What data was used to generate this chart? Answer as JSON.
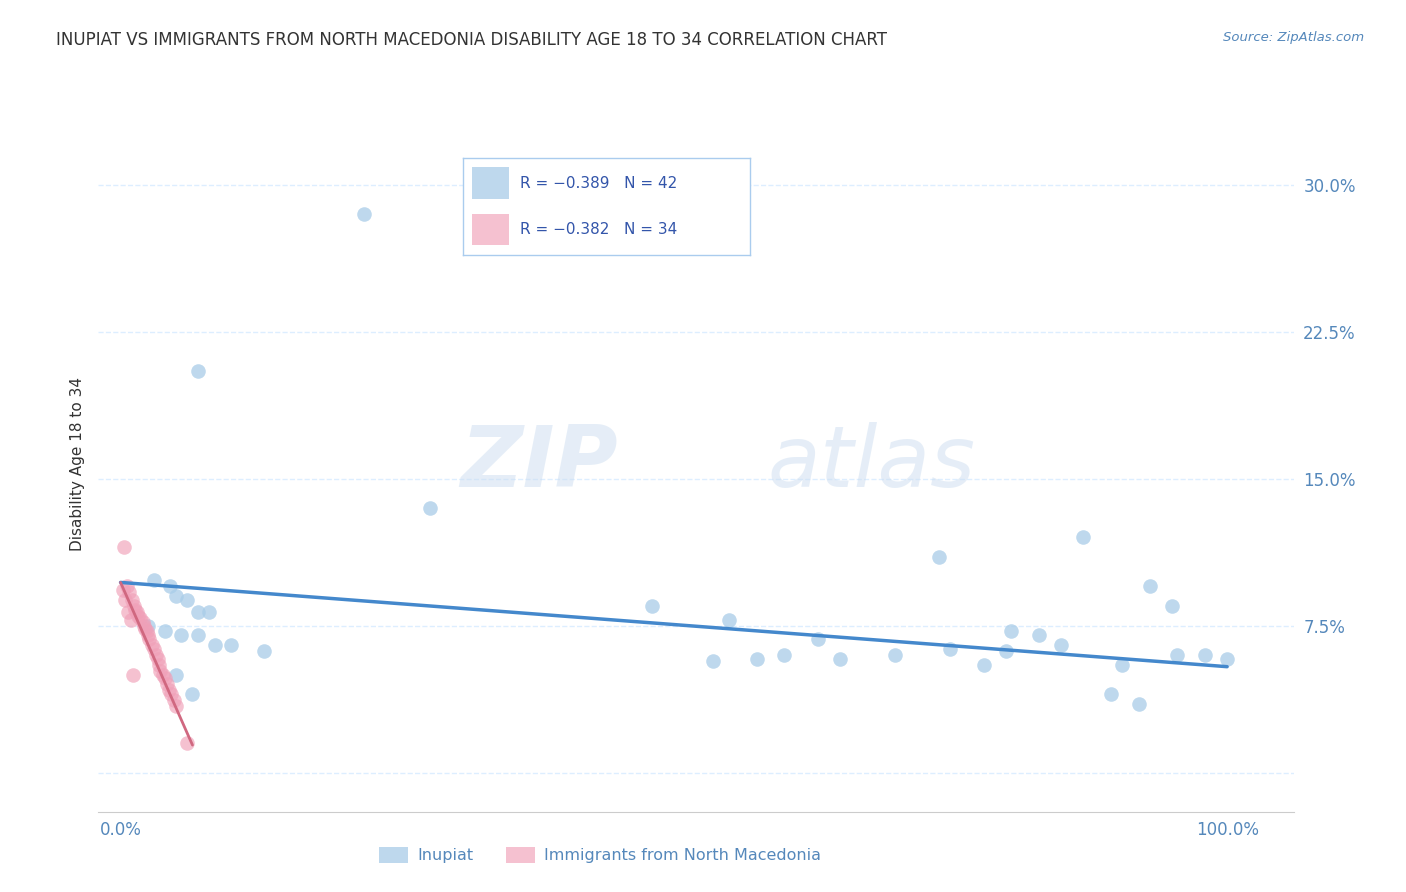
{
  "title": "INUPIAT VS IMMIGRANTS FROM NORTH MACEDONIA DISABILITY AGE 18 TO 34 CORRELATION CHART",
  "source": "Source: ZipAtlas.com",
  "ylabel_label": "Disability Age 18 to 34",
  "yticks": [
    0.0,
    0.075,
    0.15,
    0.225,
    0.3
  ],
  "ytick_labels": [
    "",
    "7.5%",
    "15.0%",
    "22.5%",
    "30.0%"
  ],
  "xtick_vals": [
    0.0,
    0.25,
    0.5,
    0.75,
    1.0
  ],
  "xtick_labels": [
    "0.0%",
    "",
    "",
    "",
    "100.0%"
  ],
  "xlim": [
    -0.02,
    1.06
  ],
  "ylim": [
    -0.02,
    0.335
  ],
  "legend_r1": "R = −0.389   N = 42",
  "legend_r2": "R = −0.382   N = 34",
  "watermark_zip": "ZIP",
  "watermark_atlas": "atlas",
  "blue_scatter_x": [
    0.22,
    0.07,
    0.28,
    0.03,
    0.045,
    0.05,
    0.06,
    0.07,
    0.08,
    0.025,
    0.04,
    0.055,
    0.07,
    0.085,
    0.1,
    0.13,
    0.05,
    0.065,
    0.48,
    0.55,
    0.6,
    0.65,
    0.7,
    0.75,
    0.8,
    0.85,
    0.895,
    0.905,
    0.92,
    0.955,
    0.98,
    1.0,
    0.95,
    0.93,
    0.87,
    0.83,
    0.78,
    0.63,
    0.575,
    0.535,
    0.74,
    0.805
  ],
  "blue_scatter_y": [
    0.285,
    0.205,
    0.135,
    0.098,
    0.095,
    0.09,
    0.088,
    0.082,
    0.082,
    0.075,
    0.072,
    0.07,
    0.07,
    0.065,
    0.065,
    0.062,
    0.05,
    0.04,
    0.085,
    0.078,
    0.06,
    0.058,
    0.06,
    0.063,
    0.062,
    0.065,
    0.04,
    0.055,
    0.035,
    0.06,
    0.06,
    0.058,
    0.085,
    0.095,
    0.12,
    0.07,
    0.055,
    0.068,
    0.058,
    0.057,
    0.11,
    0.072
  ],
  "pink_scatter_x": [
    0.003,
    0.006,
    0.008,
    0.01,
    0.012,
    0.013,
    0.015,
    0.016,
    0.018,
    0.02,
    0.021,
    0.022,
    0.024,
    0.025,
    0.026,
    0.028,
    0.03,
    0.032,
    0.034,
    0.035,
    0.036,
    0.038,
    0.04,
    0.042,
    0.044,
    0.046,
    0.048,
    0.05,
    0.06,
    0.002,
    0.004,
    0.007,
    0.009,
    0.011
  ],
  "pink_scatter_y": [
    0.115,
    0.095,
    0.092,
    0.088,
    0.085,
    0.083,
    0.082,
    0.08,
    0.079,
    0.077,
    0.075,
    0.073,
    0.072,
    0.07,
    0.068,
    0.065,
    0.063,
    0.06,
    0.058,
    0.055,
    0.052,
    0.05,
    0.048,
    0.045,
    0.042,
    0.04,
    0.037,
    0.034,
    0.015,
    0.093,
    0.088,
    0.082,
    0.078,
    0.05
  ],
  "blue_line_x": [
    0.0,
    1.0
  ],
  "blue_line_y": [
    0.097,
    0.054
  ],
  "pink_line_x": [
    0.0,
    0.065
  ],
  "pink_line_y": [
    0.097,
    0.014
  ],
  "blue_color": "#a8cce8",
  "pink_color": "#f0a0b8",
  "blue_line_color": "#4488cc",
  "pink_line_color": "#d06880",
  "background_color": "#ffffff",
  "title_color": "#333333",
  "axis_color": "#5588bb",
  "grid_color": "#ddeeff",
  "title_fontsize": 12,
  "axis_label_fontsize": 11,
  "tick_fontsize": 12,
  "legend_box_color": "#aaccee",
  "bottom_legend_items": [
    "Inupiat",
    "Immigrants from North Macedonia"
  ]
}
